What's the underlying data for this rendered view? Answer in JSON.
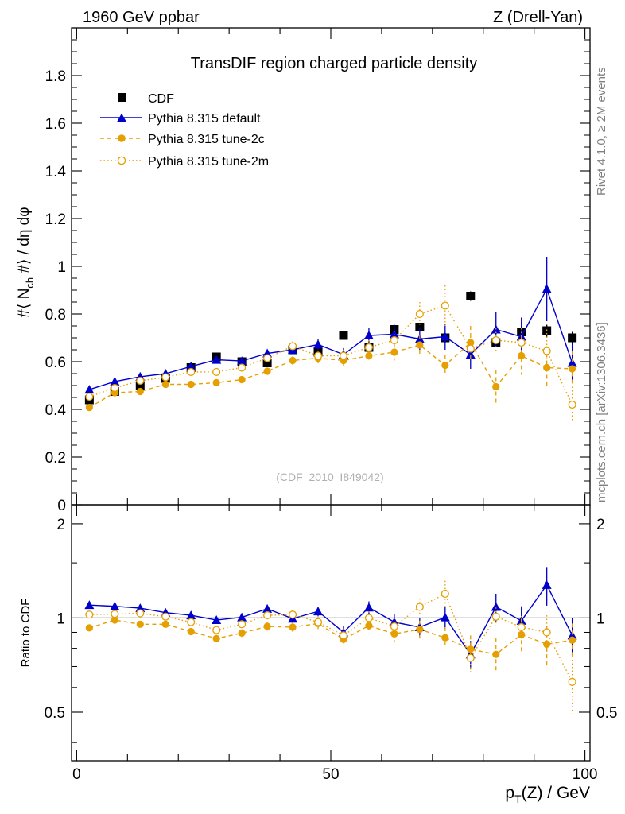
{
  "header": {
    "left_label": "1960 GeV ppbar",
    "right_label": "Z (Drell-Yan)"
  },
  "side_labels": {
    "rivet": "Rivet 4.1.0, ≥ 2M events",
    "mcplots": "mcplots.cern.ch [arXiv:1306.3436]"
  },
  "chart_data": [
    {
      "type": "scatter",
      "title": "TransDIF region charged particle density",
      "watermark": "(CDF_2010_I849042)",
      "ylabel": "#⟨ N_ch #⟩ / dη dφ",
      "xlim": [
        -1,
        101
      ],
      "ylim": [
        0,
        2.0
      ],
      "yticks": [
        0,
        0.2,
        0.4,
        0.6,
        0.8,
        1,
        1.2,
        1.4,
        1.6,
        1.8
      ],
      "ytick_labels": [
        "0",
        "0.2",
        "0.4",
        "0.6",
        "0.8",
        "1",
        "1.2",
        "1.4",
        "1.6",
        "1.8"
      ],
      "x": [
        2.5,
        7.5,
        12.5,
        17.5,
        22.5,
        27.5,
        32.5,
        37.5,
        42.5,
        47.5,
        52.5,
        57.5,
        62.5,
        67.5,
        72.5,
        77.5,
        82.5,
        87.5,
        92.5,
        97.5
      ],
      "legend": [
        "CDF",
        "Pythia 8.315 default",
        "Pythia 8.315 tune-2c",
        "Pythia 8.315 tune-2m"
      ],
      "series": [
        {
          "name": "CDF",
          "color": "#000000",
          "marker": "square",
          "line": "none",
          "values": [
            0.44,
            0.475,
            0.5,
            0.53,
            0.575,
            0.62,
            0.6,
            0.595,
            0.65,
            0.64,
            0.71,
            0.66,
            0.735,
            0.745,
            0.7,
            0.875,
            0.68,
            0.725,
            0.73,
            0.7
          ],
          "errors": [
            0.01,
            0.01,
            0.01,
            0.01,
            0.012,
            0.012,
            0.012,
            0.012,
            0.015,
            0.015,
            0.015,
            0.015,
            0.018,
            0.018,
            0.02,
            0.02,
            0.02,
            0.025,
            0.025,
            0.025
          ]
        },
        {
          "name": "Pythia 8.315 default",
          "color": "#0000cc",
          "marker": "triangle",
          "line": "solid",
          "values": [
            0.483,
            0.517,
            0.537,
            0.55,
            0.58,
            0.608,
            0.603,
            0.635,
            0.65,
            0.672,
            0.63,
            0.71,
            0.715,
            0.695,
            0.705,
            0.63,
            0.735,
            0.705,
            0.905,
            0.595
          ],
          "errors": [
            0.005,
            0.006,
            0.007,
            0.008,
            0.01,
            0.012,
            0.013,
            0.015,
            0.018,
            0.022,
            0.027,
            0.032,
            0.04,
            0.045,
            0.055,
            0.06,
            0.075,
            0.08,
            0.135,
            0.085
          ]
        },
        {
          "name": "Pythia 8.315 tune-2c",
          "color": "#e69f00",
          "marker": "circle",
          "line": "dashed",
          "values": [
            0.408,
            0.47,
            0.475,
            0.505,
            0.505,
            0.512,
            0.525,
            0.56,
            0.605,
            0.615,
            0.605,
            0.625,
            0.64,
            0.67,
            0.585,
            0.68,
            0.495,
            0.625,
            0.575,
            0.57
          ],
          "errors": [
            0.005,
            0.006,
            0.007,
            0.008,
            0.01,
            0.011,
            0.013,
            0.015,
            0.018,
            0.022,
            0.025,
            0.03,
            0.035,
            0.04,
            0.045,
            0.07,
            0.07,
            0.08,
            0.09,
            0.075
          ]
        },
        {
          "name": "Pythia 8.315 tune-2m",
          "color": "#e69f00",
          "marker": "open-circle",
          "line": "dotted",
          "values": [
            0.453,
            0.49,
            0.52,
            0.535,
            0.557,
            0.557,
            0.575,
            0.615,
            0.665,
            0.625,
            0.625,
            0.66,
            0.69,
            0.8,
            0.835,
            0.655,
            0.69,
            0.68,
            0.645,
            0.42
          ],
          "errors": [
            0.005,
            0.006,
            0.007,
            0.008,
            0.01,
            0.012,
            0.013,
            0.015,
            0.02,
            0.022,
            0.025,
            0.03,
            0.04,
            0.05,
            0.085,
            0.05,
            0.05,
            0.06,
            0.09,
            0.075
          ]
        }
      ]
    },
    {
      "type": "scatter",
      "title": "",
      "ylabel": "Ratio to CDF",
      "xlabel": "p_T(Z) / GeV",
      "xlim": [
        -1,
        101
      ],
      "ylim": [
        0.35,
        2.3
      ],
      "xticks": [
        0,
        50,
        100
      ],
      "xtick_labels": [
        "0",
        "50",
        "100"
      ],
      "yticks": [
        0.5,
        1,
        2
      ],
      "ytick_labels": [
        "0.5",
        "1",
        "2"
      ],
      "reference_line": 1,
      "x": [
        2.5,
        7.5,
        12.5,
        17.5,
        22.5,
        27.5,
        32.5,
        37.5,
        42.5,
        47.5,
        52.5,
        57.5,
        62.5,
        67.5,
        72.5,
        77.5,
        82.5,
        87.5,
        92.5,
        97.5
      ],
      "series": [
        {
          "name": "Pythia 8.315 default",
          "color": "#0000cc",
          "marker": "triangle",
          "line": "solid",
          "values": [
            1.1,
            1.09,
            1.075,
            1.04,
            1.02,
            0.985,
            1.005,
            1.07,
            0.995,
            1.05,
            0.9,
            1.08,
            0.97,
            0.935,
            1.005,
            0.765,
            1.085,
            0.98,
            1.275,
            0.88
          ],
          "errors": [
            0.012,
            0.014,
            0.016,
            0.018,
            0.02,
            0.022,
            0.025,
            0.028,
            0.032,
            0.038,
            0.045,
            0.05,
            0.06,
            0.065,
            0.08,
            0.08,
            0.11,
            0.11,
            0.18,
            0.12
          ]
        },
        {
          "name": "Pythia 8.315 tune-2c",
          "color": "#e69f00",
          "marker": "circle",
          "line": "dashed",
          "values": [
            0.93,
            0.985,
            0.955,
            0.955,
            0.905,
            0.86,
            0.895,
            0.94,
            0.935,
            0.96,
            0.855,
            0.945,
            0.89,
            0.92,
            0.865,
            0.795,
            0.765,
            0.885,
            0.825,
            0.85
          ],
          "errors": [
            0.012,
            0.014,
            0.016,
            0.018,
            0.02,
            0.022,
            0.025,
            0.028,
            0.032,
            0.038,
            0.045,
            0.05,
            0.055,
            0.06,
            0.07,
            0.085,
            0.1,
            0.11,
            0.12,
            0.11
          ]
        },
        {
          "name": "Pythia 8.315 tune-2m",
          "color": "#e69f00",
          "marker": "open-circle",
          "line": "dotted",
          "values": [
            1.025,
            1.03,
            1.035,
            1.01,
            0.97,
            0.915,
            0.955,
            1.02,
            1.025,
            0.97,
            0.88,
            1.0,
            0.94,
            1.085,
            1.195,
            0.745,
            1.01,
            0.935,
            0.9,
            0.625
          ],
          "errors": [
            0.012,
            0.014,
            0.016,
            0.018,
            0.02,
            0.022,
            0.025,
            0.028,
            0.032,
            0.038,
            0.045,
            0.05,
            0.06,
            0.07,
            0.12,
            0.07,
            0.07,
            0.08,
            0.12,
            0.13
          ]
        }
      ]
    }
  ]
}
